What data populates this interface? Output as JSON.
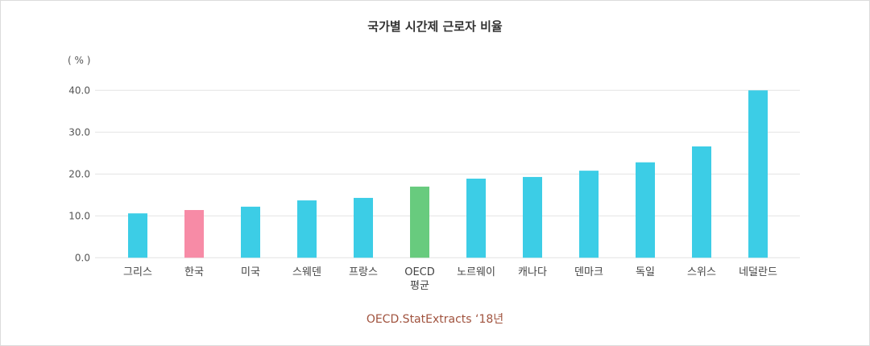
{
  "chart_data": {
    "type": "bar",
    "title": "국가별 시간제 근로자 비율",
    "ylabel": "( % )",
    "xlabel": "",
    "categories": [
      "그리스",
      "한국",
      "미국",
      "스웨덴",
      "프랑스",
      "OECD 평균",
      "노르웨이",
      "캐나다",
      "덴마크",
      "독일",
      "스위스",
      "네덜란드"
    ],
    "values": [
      10.6,
      11.4,
      12.2,
      13.7,
      14.3,
      17.0,
      18.9,
      19.3,
      20.8,
      22.8,
      26.6,
      40.0
    ],
    "ylim": [
      0,
      40
    ],
    "yticks": [
      "0.0",
      "10.0",
      "20.0",
      "30.0",
      "40.0"
    ],
    "grid": true,
    "colors": {
      "default": "#3ccde6",
      "highlight_korea": "#f78ba6",
      "highlight_oecd": "#68cb7e"
    },
    "source": "OECD.StatExtracts ‘18년"
  }
}
